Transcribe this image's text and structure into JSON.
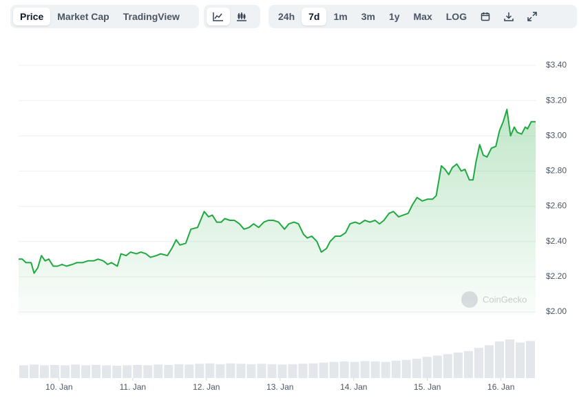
{
  "toolbar": {
    "views": [
      "Price",
      "Market Cap",
      "TradingView"
    ],
    "active_view": 0,
    "ranges": [
      "24h",
      "7d",
      "1m",
      "3m",
      "1y",
      "Max",
      "LOG"
    ],
    "active_range": 1
  },
  "watermark": "CoinGecko",
  "chart_data": [
    {
      "type": "line",
      "color": "#1fa83f",
      "area": true,
      "grid": true,
      "x": [
        9.45,
        9.5,
        9.55,
        9.62,
        9.66,
        9.71,
        9.76,
        9.81,
        9.86,
        9.92,
        9.98,
        10.04,
        10.1,
        10.18,
        10.24,
        10.32,
        10.39,
        10.47,
        10.53,
        10.6,
        10.66,
        10.71,
        10.79,
        10.84,
        10.91,
        10.97,
        11.05,
        11.11,
        11.18,
        11.24,
        11.32,
        11.38,
        11.47,
        11.53,
        11.59,
        11.64,
        11.72,
        11.79,
        11.88,
        11.97,
        12.03,
        12.08,
        12.14,
        12.2,
        12.25,
        12.32,
        12.38,
        12.45,
        12.51,
        12.58,
        12.64,
        12.71,
        12.78,
        12.84,
        12.91,
        12.98,
        13.06,
        13.12,
        13.19,
        13.25,
        13.32,
        13.37,
        13.43,
        13.5,
        13.56,
        13.63,
        13.68,
        13.75,
        13.82,
        13.89,
        13.95,
        14.02,
        14.08,
        14.15,
        14.22,
        14.29,
        14.35,
        14.41,
        14.48,
        14.54,
        14.61,
        14.67,
        14.74,
        14.8,
        14.86,
        14.93,
        15.0,
        15.07,
        15.12,
        15.19,
        15.24,
        15.29,
        15.34,
        15.4,
        15.46,
        15.51,
        15.57,
        15.62,
        15.66,
        15.71,
        15.76,
        15.81,
        15.87,
        15.93,
        15.98,
        16.03,
        16.08,
        16.13,
        16.18,
        16.22,
        16.28,
        16.33,
        16.36,
        16.41,
        16.47
      ],
      "values": [
        2.3,
        2.3,
        2.28,
        2.28,
        2.22,
        2.25,
        2.32,
        2.29,
        2.3,
        2.26,
        2.26,
        2.27,
        2.26,
        2.27,
        2.28,
        2.28,
        2.29,
        2.29,
        2.3,
        2.29,
        2.27,
        2.28,
        2.26,
        2.33,
        2.32,
        2.34,
        2.33,
        2.34,
        2.33,
        2.31,
        2.32,
        2.33,
        2.32,
        2.36,
        2.41,
        2.38,
        2.39,
        2.47,
        2.48,
        2.57,
        2.54,
        2.55,
        2.51,
        2.51,
        2.53,
        2.52,
        2.52,
        2.5,
        2.47,
        2.48,
        2.5,
        2.48,
        2.51,
        2.52,
        2.52,
        2.51,
        2.47,
        2.5,
        2.51,
        2.5,
        2.44,
        2.42,
        2.43,
        2.4,
        2.34,
        2.36,
        2.4,
        2.43,
        2.43,
        2.45,
        2.5,
        2.51,
        2.5,
        2.52,
        2.51,
        2.52,
        2.5,
        2.52,
        2.56,
        2.57,
        2.54,
        2.55,
        2.56,
        2.61,
        2.65,
        2.63,
        2.64,
        2.64,
        2.66,
        2.83,
        2.81,
        2.78,
        2.82,
        2.84,
        2.8,
        2.81,
        2.75,
        2.75,
        2.85,
        2.95,
        2.89,
        2.88,
        2.93,
        2.94,
        3.03,
        3.08,
        3.15,
        3.0,
        3.05,
        3.02,
        3.01,
        3.05,
        3.04,
        3.08,
        3.08
      ],
      "xlim": [
        9.45,
        16.47
      ],
      "xticks": [
        {
          "value": 10,
          "label": "10. Jan"
        },
        {
          "value": 11,
          "label": "11. Jan"
        },
        {
          "value": 12,
          "label": "12. Jan"
        },
        {
          "value": 13,
          "label": "13. Jan"
        },
        {
          "value": 14,
          "label": "14. Jan"
        },
        {
          "value": 15,
          "label": "15. Jan"
        },
        {
          "value": 16,
          "label": "16. Jan"
        }
      ],
      "ylim": [
        2.0,
        3.4
      ],
      "yticks": [
        {
          "value": 2.0,
          "label": "$2.00"
        },
        {
          "value": 2.2,
          "label": "$2.20"
        },
        {
          "value": 2.4,
          "label": "$2.40"
        },
        {
          "value": 2.6,
          "label": "$2.60"
        },
        {
          "value": 2.8,
          "label": "$2.80"
        },
        {
          "value": 3.0,
          "label": "$3.00"
        },
        {
          "value": 3.2,
          "label": "$3.20"
        },
        {
          "value": 3.4,
          "label": "$3.40"
        }
      ]
    },
    {
      "type": "bar",
      "color": "#e3e6ea",
      "ylim": [
        0,
        1
      ],
      "values": [
        0.33,
        0.35,
        0.33,
        0.34,
        0.33,
        0.35,
        0.33,
        0.34,
        0.33,
        0.32,
        0.33,
        0.34,
        0.33,
        0.35,
        0.34,
        0.36,
        0.35,
        0.37,
        0.38,
        0.36,
        0.38,
        0.37,
        0.36,
        0.37,
        0.36,
        0.35,
        0.36,
        0.37,
        0.38,
        0.4,
        0.42,
        0.43,
        0.42,
        0.44,
        0.43,
        0.42,
        0.45,
        0.47,
        0.5,
        0.55,
        0.58,
        0.62,
        0.66,
        0.7,
        0.78,
        0.85,
        0.95,
        1.0,
        0.92,
        0.96
      ]
    }
  ]
}
